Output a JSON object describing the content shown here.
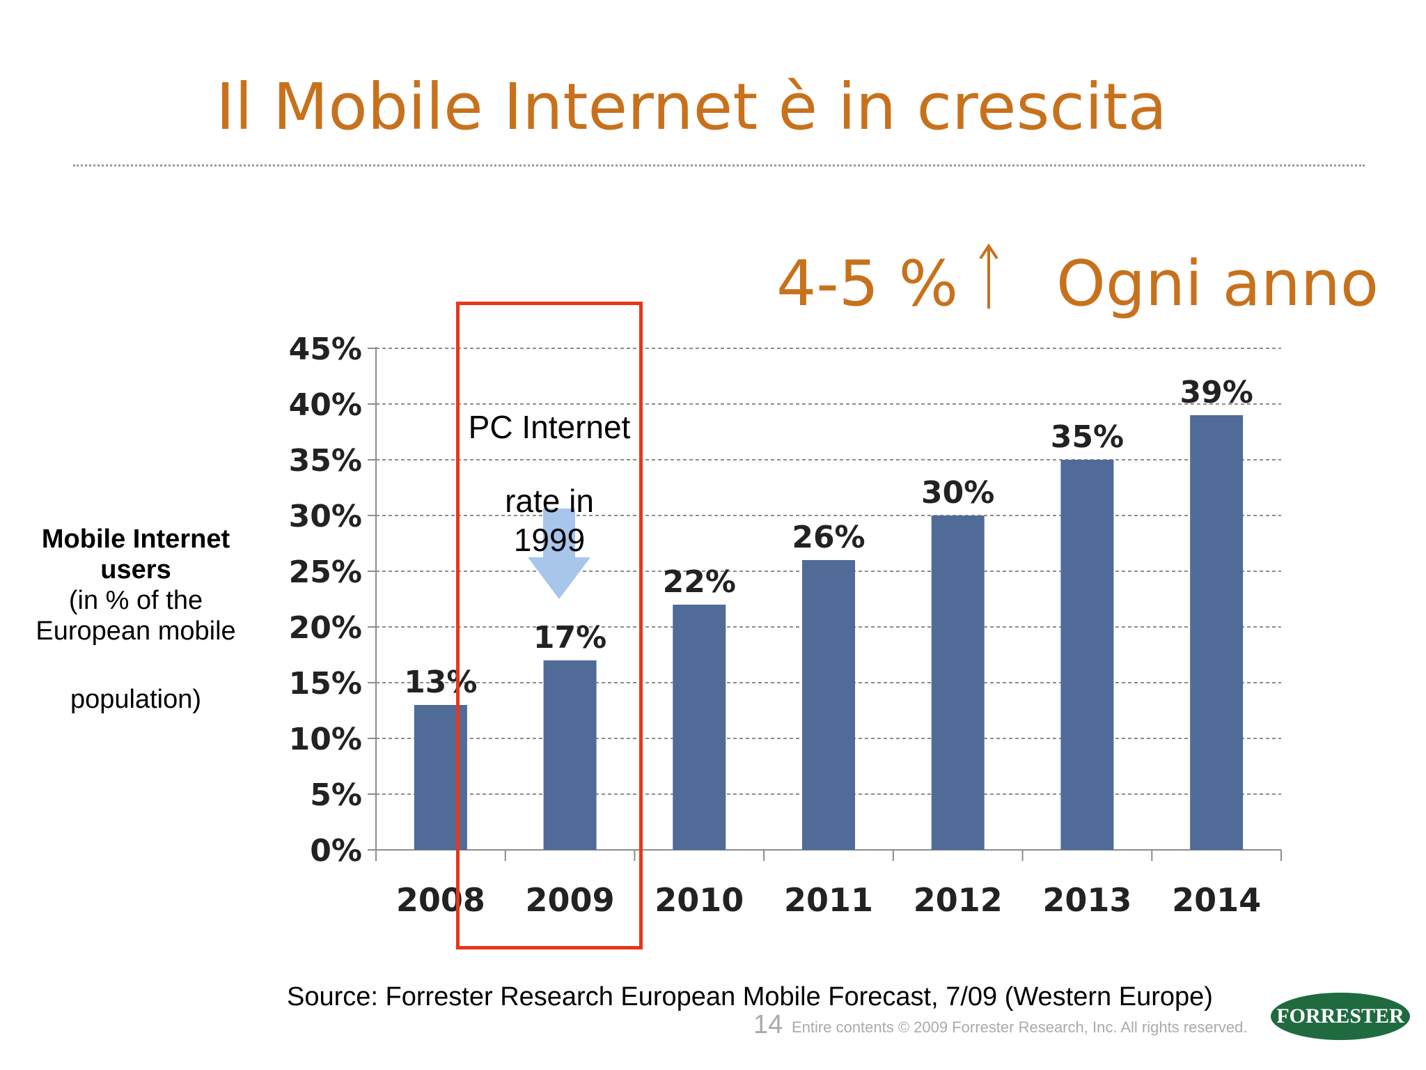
{
  "slide": {
    "title": "Il Mobile Internet è in crescita",
    "growth_rate": "4-5 %",
    "growth_icon": "up-arrow-icon",
    "growth_period": "Ogni anno"
  },
  "y_axis_label": {
    "line1": "Mobile Internet",
    "line2": "users",
    "line3": "(in % of the",
    "line4": "European mobile",
    "line5": "population)"
  },
  "annotation": {
    "line1": "PC Internet",
    "line2": "rate in",
    "line3": "1999",
    "arrow_icon": "down-arrow-icon"
  },
  "source": "Source: Forrester Research European Mobile Forecast, 7/09 (Western Europe)",
  "footer": {
    "page_number": "14",
    "copyright": "Entire contents © 2009 Forrester Research, Inc. All rights reserved.",
    "logo_text": "FORRESTER"
  },
  "colors": {
    "title": "#C8711C",
    "bar": "#506B97",
    "highlight_box": "#E8361B",
    "annotation_arrow": "#A8C5EC",
    "logo": "#1F6B3F"
  },
  "chart_data": {
    "type": "bar",
    "categories": [
      "2008",
      "2009",
      "2010",
      "2011",
      "2012",
      "2013",
      "2014"
    ],
    "values": [
      13,
      17,
      22,
      26,
      30,
      35,
      39
    ],
    "data_labels": [
      "13%",
      "17%",
      "22%",
      "26%",
      "30%",
      "35%",
      "39%"
    ],
    "y_ticks": [
      "0%",
      "5%",
      "10%",
      "15%",
      "20%",
      "25%",
      "30%",
      "35%",
      "40%",
      "45%"
    ],
    "ylim": [
      0,
      45
    ],
    "grid": "horizontal dashed",
    "legend": "none",
    "highlighted_category": "2009"
  }
}
